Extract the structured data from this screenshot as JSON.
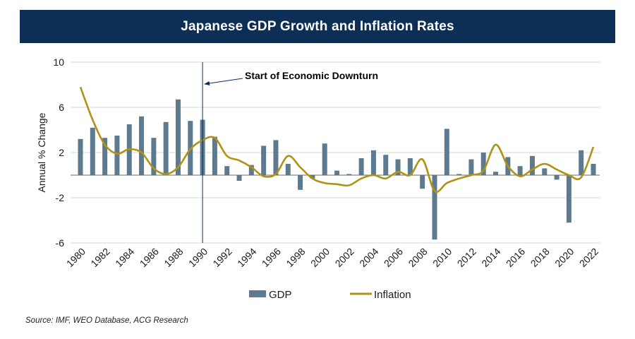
{
  "title": "Japanese GDP Growth and Inflation Rates",
  "source": "Source: IMF, WEO Database, ACG Research",
  "colors": {
    "header_bg": "#0d2e55",
    "gdp": "#5d7a8f",
    "inflation": "#b09315",
    "grid": "#d9d9d9",
    "annotation_line": "#0d2e55"
  },
  "chart_data": {
    "type": "bar+line",
    "title": "Japanese GDP Growth and Inflation Rates",
    "xlabel": "",
    "ylabel": "Annual % Change",
    "ylim": [
      -6,
      10
    ],
    "yticks": [
      -6,
      -2,
      2,
      6,
      10
    ],
    "ytick_labels": [
      "-6",
      "-2",
      "2",
      "6",
      "10"
    ],
    "categories": [
      1980,
      1981,
      1982,
      1983,
      1984,
      1985,
      1986,
      1987,
      1988,
      1989,
      1990,
      1991,
      1992,
      1993,
      1994,
      1995,
      1996,
      1997,
      1998,
      1999,
      2000,
      2001,
      2002,
      2003,
      2004,
      2005,
      2006,
      2007,
      2008,
      2009,
      2010,
      2011,
      2012,
      2013,
      2014,
      2015,
      2016,
      2017,
      2018,
      2019,
      2020,
      2021,
      2022
    ],
    "xtick_labels": [
      "1980",
      "1982",
      "1984",
      "1986",
      "1988",
      "1990",
      "1992",
      "1994",
      "1996",
      "1998",
      "2000",
      "2002",
      "2004",
      "2006",
      "2008",
      "2010",
      "2012",
      "2014",
      "2016",
      "2018",
      "2020",
      "2022"
    ],
    "series": [
      {
        "name": "GDP",
        "kind": "bar",
        "values": [
          3.2,
          4.2,
          3.3,
          3.5,
          4.5,
          5.2,
          3.3,
          4.7,
          6.7,
          4.8,
          4.9,
          3.4,
          0.8,
          -0.5,
          0.9,
          2.6,
          3.1,
          1.0,
          -1.3,
          -0.3,
          2.8,
          0.4,
          0.1,
          1.5,
          2.2,
          1.8,
          1.4,
          1.5,
          -1.2,
          -5.7,
          4.1,
          0.1,
          1.4,
          2.0,
          0.3,
          1.6,
          0.8,
          1.7,
          0.6,
          -0.4,
          -4.2,
          2.2,
          1.0
        ]
      },
      {
        "name": "Inflation",
        "kind": "line",
        "values": [
          7.8,
          4.9,
          2.7,
          1.9,
          2.3,
          2.0,
          0.6,
          0.1,
          0.7,
          2.3,
          3.1,
          3.3,
          1.7,
          1.3,
          0.7,
          -0.1,
          0.1,
          1.7,
          0.7,
          -0.3,
          -0.7,
          -0.8,
          -0.9,
          -0.3,
          0.0,
          -0.3,
          0.3,
          0.0,
          1.4,
          -1.4,
          -0.7,
          -0.3,
          0.0,
          0.4,
          2.7,
          0.8,
          -0.1,
          0.5,
          1.0,
          0.5,
          0.0,
          -0.2,
          2.5
        ]
      }
    ],
    "annotations": [
      {
        "text": "Start of Economic Downturn",
        "x": 1990
      }
    ],
    "legend": {
      "placement": "bottom-center",
      "entries": [
        "GDP",
        "Inflation"
      ]
    },
    "grid": true
  }
}
